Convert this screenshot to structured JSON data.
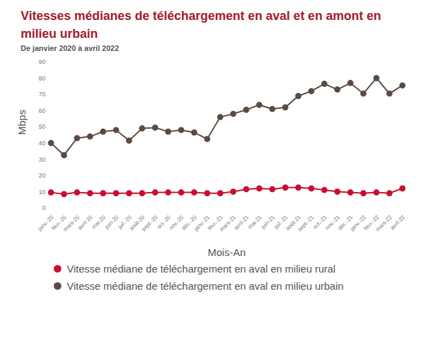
{
  "chart_data": {
    "type": "line",
    "title": "Vitesses médianes de téléchargement en aval et en amont en milieu urbain",
    "subtitle": "De janvier 2020 à avril 2022",
    "x_label": "Mois-An",
    "y_label": "Mbps",
    "categories": [
      "janv.-20",
      "févr.-20",
      "mars-20",
      "avril-20",
      "mai-20",
      "juin-20",
      "juil.-20",
      "août-20",
      "sept.-20",
      "oct.-20",
      "nov.-20",
      "déc.-20",
      "janv.-21",
      "févr.-21",
      "mars-21",
      "avril-21",
      "mai-21",
      "juin-21",
      "juil.-21",
      "août-21",
      "sept.-21",
      "oct.-21",
      "nov.-21",
      "déc.-21",
      "janv.-22",
      "févr.-22",
      "mars-22",
      "avril-22"
    ],
    "series": [
      {
        "name": "Vitesse médiane de téléchargement en aval en milieu rural",
        "color": "#c8102e",
        "marker": "circle",
        "line_style": "solid",
        "values": [
          9.5,
          8.5,
          9.5,
          9,
          9,
          9,
          9,
          9,
          9.5,
          9.5,
          9.5,
          9.5,
          9,
          9,
          10,
          11.5,
          12,
          11.5,
          12.5,
          12.5,
          12,
          11,
          10,
          9.5,
          9,
          9.5,
          9,
          12
        ]
      },
      {
        "name": "Vitesse médiane de téléchargement en aval en milieu urbain",
        "color": "#5b4b43",
        "marker": "circle",
        "line_style": "solid",
        "values": [
          40,
          32.5,
          43,
          44,
          47,
          48,
          41.5,
          49,
          49.5,
          47,
          48,
          46.5,
          42.5,
          56,
          58,
          60.5,
          63.5,
          61,
          62,
          69,
          72,
          76.5,
          73,
          77,
          70.5,
          80,
          70.5,
          75.5
        ]
      }
    ],
    "ylim": [
      0,
      90
    ],
    "yticks": [
      0,
      10,
      20,
      30,
      40,
      50,
      60,
      70,
      80,
      90
    ],
    "grid": false,
    "legend": "bottom"
  }
}
